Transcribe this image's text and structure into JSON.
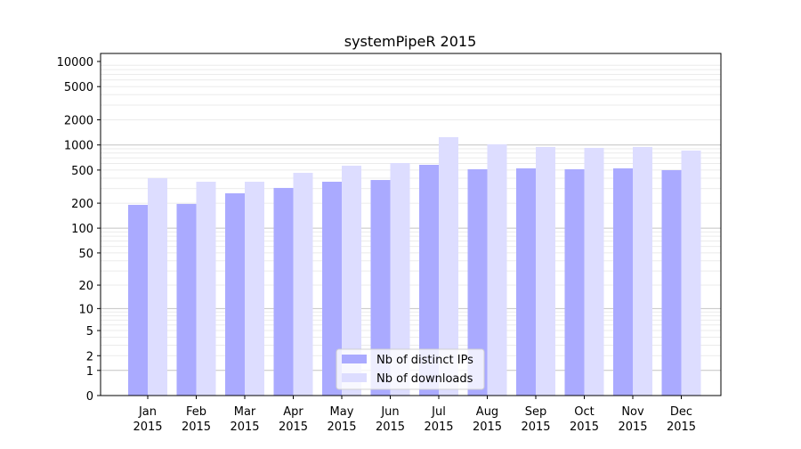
{
  "chart_data": {
    "type": "bar",
    "title": "systemPipeR 2015",
    "xlabel": "",
    "ylabel": "",
    "y_scale": "log(1+x)",
    "ylim": [
      0,
      10000
    ],
    "y_ticks": [
      0,
      1,
      2,
      5,
      10,
      20,
      50,
      100,
      200,
      500,
      1000,
      2000,
      5000,
      10000
    ],
    "grid": true,
    "legend_position": "bottom-center",
    "categories": [
      [
        "Jan",
        "2015"
      ],
      [
        "Feb",
        "2015"
      ],
      [
        "Mar",
        "2015"
      ],
      [
        "Apr",
        "2015"
      ],
      [
        "May",
        "2015"
      ],
      [
        "Jun",
        "2015"
      ],
      [
        "Jul",
        "2015"
      ],
      [
        "Aug",
        "2015"
      ],
      [
        "Sep",
        "2015"
      ],
      [
        "Oct",
        "2015"
      ],
      [
        "Nov",
        "2015"
      ],
      [
        "Dec",
        "2015"
      ]
    ],
    "series": [
      {
        "name": "Nb of distinct IPs",
        "color": "#aaaaff",
        "values": [
          191,
          196,
          263,
          305,
          362,
          380,
          578,
          511,
          524,
          511,
          524,
          499
        ]
      },
      {
        "name": "Nb of downloads",
        "color": "#ddddff",
        "values": [
          400,
          362,
          362,
          463,
          564,
          607,
          1240,
          1017,
          945,
          922,
          945,
          857
        ]
      }
    ]
  }
}
